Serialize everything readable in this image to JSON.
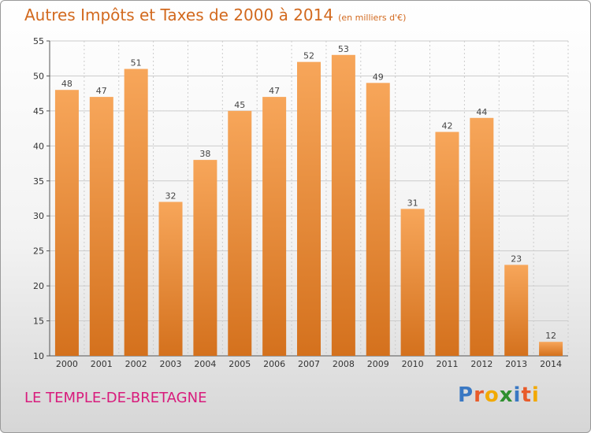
{
  "title": "Autres Impôts et Taxes de 2000 à 2014",
  "unit_note": "(en milliers d'€)",
  "place": "LE TEMPLE-DE-BRETAGNE",
  "logo_text": "Proxiti",
  "colors": {
    "bar_light": "#f7a65a",
    "bar_dark": "#d4711d",
    "title": "#d2691e",
    "place": "#d81b7c",
    "grid": "#cccccc"
  },
  "chart_data": {
    "type": "bar",
    "title": "Autres Impôts et Taxes de 2000 à 2014",
    "subtitle": "(en milliers d'€)",
    "categories": [
      "2000",
      "2001",
      "2002",
      "2003",
      "2004",
      "2005",
      "2006",
      "2007",
      "2008",
      "2009",
      "2010",
      "2011",
      "2012",
      "2013",
      "2014"
    ],
    "values": [
      48,
      47,
      51,
      32,
      38,
      45,
      47,
      52,
      53,
      49,
      31,
      42,
      44,
      23,
      12
    ],
    "ylim": [
      10,
      55
    ],
    "yticks": [
      10,
      15,
      20,
      25,
      30,
      35,
      40,
      45,
      50,
      55
    ],
    "xlabel": "",
    "ylabel": "",
    "grid": true,
    "data_labels": true
  }
}
